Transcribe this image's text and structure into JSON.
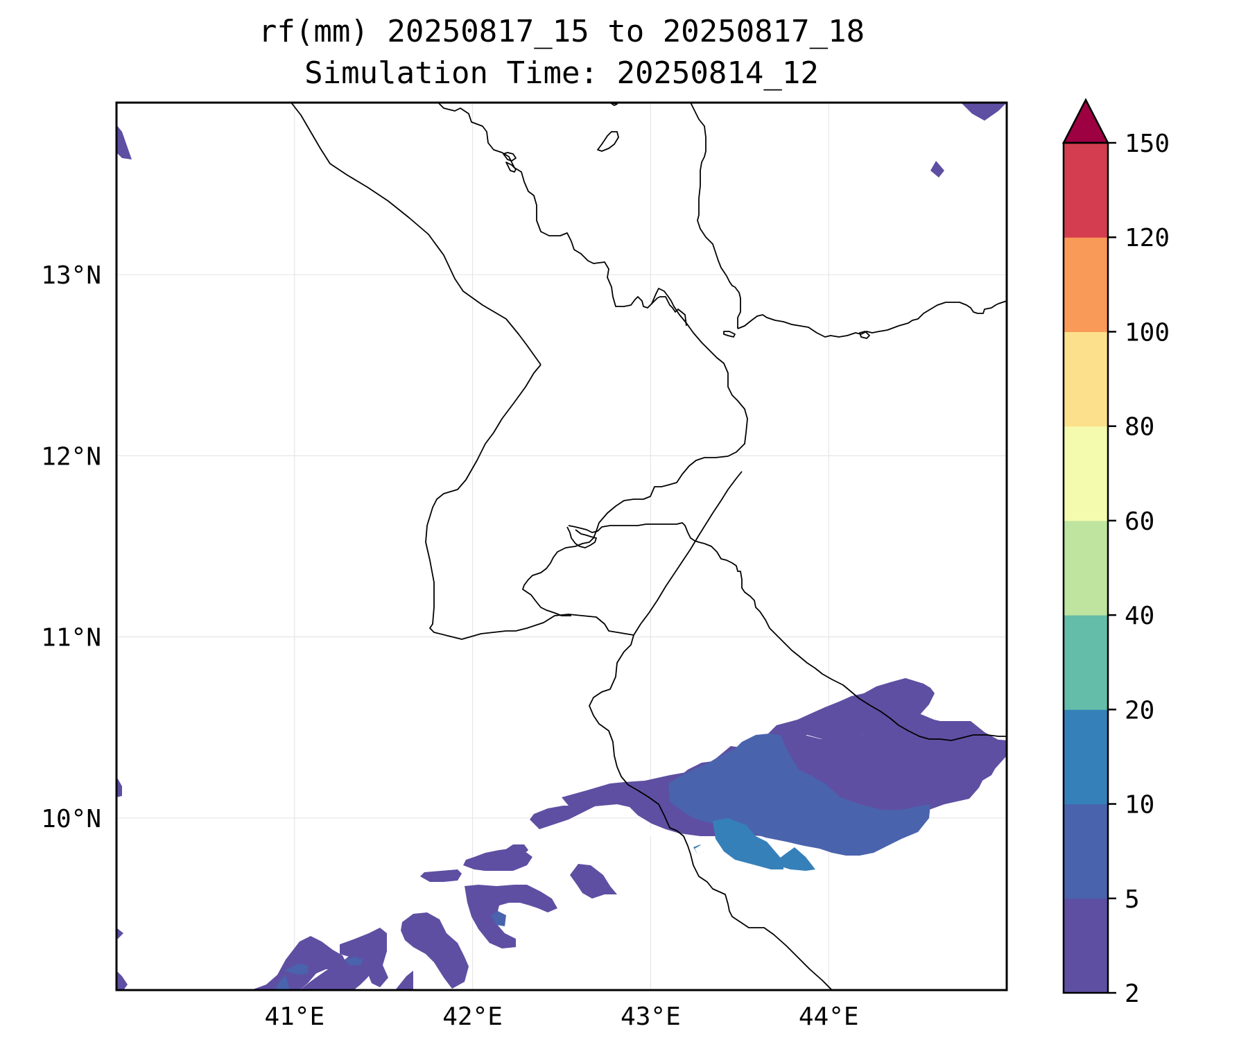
{
  "title_line1": "rf(mm) 20250817_15 to 20250817_18",
  "title_line2": "Simulation Time: 20250814_12",
  "map": {
    "extent": {
      "lon_min": 40.0,
      "lon_max": 45.0,
      "lat_min": 9.05,
      "lat_max": 13.95
    },
    "lon_ticks": [
      {
        "value": 41,
        "label": "41°E"
      },
      {
        "value": 42,
        "label": "42°E"
      },
      {
        "value": 43,
        "label": "43°E"
      },
      {
        "value": 44,
        "label": "44°E"
      }
    ],
    "lat_ticks": [
      {
        "value": 10,
        "label": "10°N"
      },
      {
        "value": 11,
        "label": "11°N"
      },
      {
        "value": 12,
        "label": "12°N"
      },
      {
        "value": 13,
        "label": "13°N"
      }
    ],
    "gridlines": true
  },
  "colorbar": {
    "levels": [
      2,
      5,
      10,
      20,
      40,
      60,
      80,
      100,
      120,
      150
    ],
    "labels": [
      "2",
      "5",
      "10",
      "20",
      "40",
      "60",
      "80",
      "100",
      "120",
      "150"
    ],
    "colors": [
      "#5e4fa2",
      "#4a63ad",
      "#3680ba",
      "#63bda9",
      "#bee4a0",
      "#f5fbae",
      "#fde08b",
      "#f99a58",
      "#d43d4f"
    ],
    "extend_color": "#9e0142",
    "extend": "max"
  },
  "colors": {
    "coastline": "#000000",
    "grid": "#e6e6e6"
  }
}
